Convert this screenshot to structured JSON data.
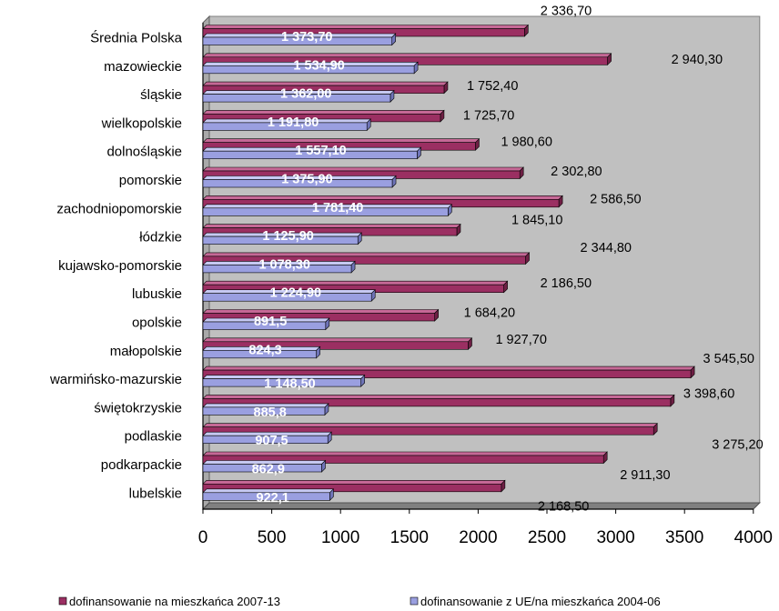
{
  "chart_data": {
    "type": "bar",
    "orientation": "horizontal",
    "categories": [
      "Średnia Polska",
      "mazowieckie",
      "śląskie",
      "wielkopolskie",
      "dolnośląskie",
      "pomorskie",
      "zachodniopomorskie",
      "łódzkie",
      "kujawsko-pomorskie",
      "lubuskie",
      "opolskie",
      "małopolskie",
      "warmińsko-mazurskie",
      "świętokrzyskie",
      "podlaskie",
      "podkarpackie",
      "lubelskie"
    ],
    "series": [
      {
        "name": "dofinansowanie na mieszkańca 2007-13",
        "color": "#9b2f62",
        "values": [
          2336.7,
          2940.3,
          1752.4,
          1725.7,
          1980.6,
          2302.8,
          2586.5,
          1845.1,
          2344.8,
          2186.5,
          1684.2,
          1927.7,
          3545.5,
          3398.6,
          3275.2,
          2911.3,
          2168.5
        ],
        "labels": [
          "2 336,70",
          "2 940,30",
          "1 752,40",
          "1 725,70",
          "1 980,60",
          "2 302,80",
          "2 586,50",
          "1 845,10",
          "2 344,80",
          "2 186,50",
          "1 684,20",
          "1 927,70",
          "3 545,50",
          "3 398,60",
          "3 275,20",
          "2 911,30",
          "2 168,50"
        ]
      },
      {
        "name": "dofinansowanie z UE/na mieszkańca 2004-06",
        "color": "#9a9fe0",
        "values": [
          1373.7,
          1534.9,
          1362.0,
          1191.8,
          1557.1,
          1375.9,
          1781.4,
          1125.9,
          1078.3,
          1224.9,
          891.5,
          824.3,
          1148.5,
          885.8,
          907.5,
          862.9,
          922.1
        ],
        "labels": [
          "1 373,70",
          "1 534,90",
          "1 362,00",
          "1 191,80",
          "1 557,10",
          "1 375,90",
          "1 781,40",
          "1 125,90",
          "1 078,30",
          "1 224,90",
          "891,5",
          "824,3",
          "1 148,50",
          "885,8",
          "907,5",
          "862,9",
          "922,1"
        ]
      }
    ],
    "xlim": [
      0,
      4000
    ],
    "xticks": [
      "0",
      "500",
      "1000",
      "1500",
      "2000",
      "2500",
      "3000",
      "3500",
      "4000"
    ],
    "xtick_values": [
      0,
      500,
      1000,
      1500,
      2000,
      2500,
      3000,
      3500,
      4000
    ],
    "plot_background": "#c0c0c0",
    "legend_position": "bottom"
  }
}
